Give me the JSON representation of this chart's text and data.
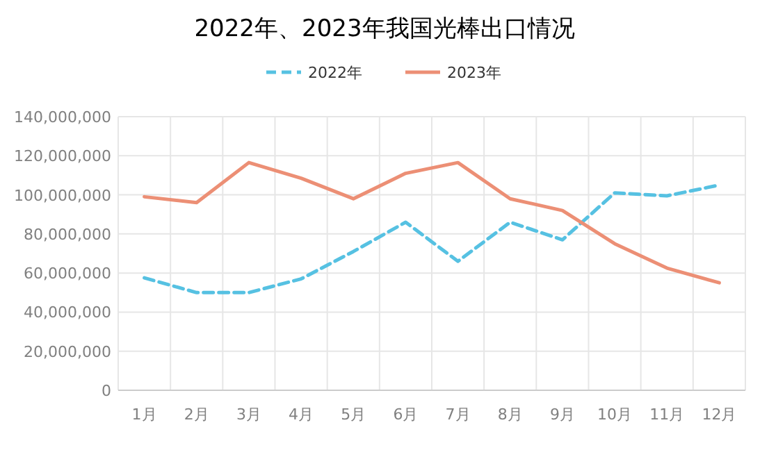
{
  "chart_data": {
    "type": "line",
    "title": "2022年、2023年我国光棒出口情况",
    "categories": [
      "1月",
      "2月",
      "3月",
      "4月",
      "5月",
      "6月",
      "7月",
      "8月",
      "9月",
      "10月",
      "11月",
      "12月"
    ],
    "series": [
      {
        "name": "2022年",
        "color": "#56c1e2",
        "line_style": "dashed",
        "values": [
          57500000,
          50000000,
          50000000,
          57000000,
          71000000,
          86000000,
          66000000,
          86000000,
          77000000,
          101000000,
          99500000,
          105000000
        ]
      },
      {
        "name": "2023年",
        "color": "#ec8f75",
        "line_style": "solid",
        "values": [
          99000000,
          96000000,
          116500000,
          108500000,
          98000000,
          111000000,
          116500000,
          98000000,
          92000000,
          75000000,
          62500000,
          55000000
        ]
      }
    ],
    "ylim": [
      0,
      140000000
    ],
    "yticks": [
      {
        "value": 0,
        "label": "0"
      },
      {
        "value": 20000000,
        "label": "20,000,000"
      },
      {
        "value": 40000000,
        "label": "40,000,000"
      },
      {
        "value": 60000000,
        "label": "60,000,000"
      },
      {
        "value": 80000000,
        "label": "80,000,000"
      },
      {
        "value": 100000000,
        "label": "100,000,000"
      },
      {
        "value": 120000000,
        "label": "120,000,000"
      },
      {
        "value": 140000000,
        "label": "140,000,000"
      }
    ],
    "grid": true,
    "legend": "top",
    "marker": "none"
  }
}
